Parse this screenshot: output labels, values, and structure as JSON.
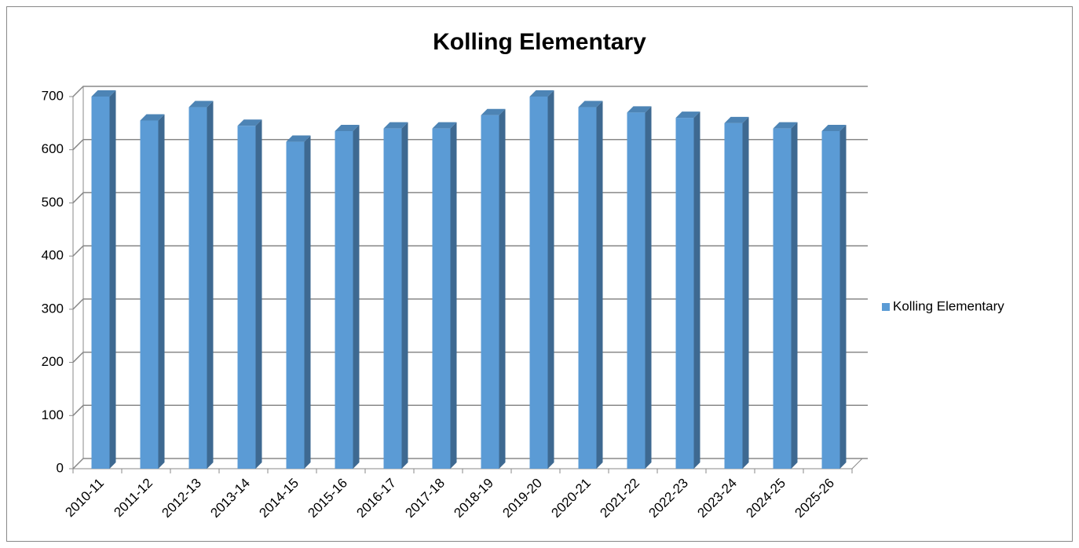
{
  "chart_data": {
    "type": "bar",
    "title": "Kolling Elementary",
    "categories": [
      "2010-11",
      "2011-12",
      "2012-13",
      "2013-14",
      "2014-15",
      "2015-16",
      "2016-17",
      "2017-18",
      "2018-19",
      "2019-20",
      "2020-21",
      "2021-22",
      "2022-23",
      "2023-24",
      "2024-25",
      "2025-26"
    ],
    "series": [
      {
        "name": "Kolling Elementary",
        "color": "#5b9bd5",
        "values": [
          700,
          655,
          680,
          645,
          615,
          635,
          640,
          640,
          665,
          700,
          680,
          670,
          660,
          650,
          640,
          635
        ]
      }
    ],
    "ylim": [
      0,
      700
    ],
    "yticks": [
      0,
      100,
      200,
      300,
      400,
      500,
      600,
      700
    ],
    "grid": true,
    "legend": "right"
  }
}
